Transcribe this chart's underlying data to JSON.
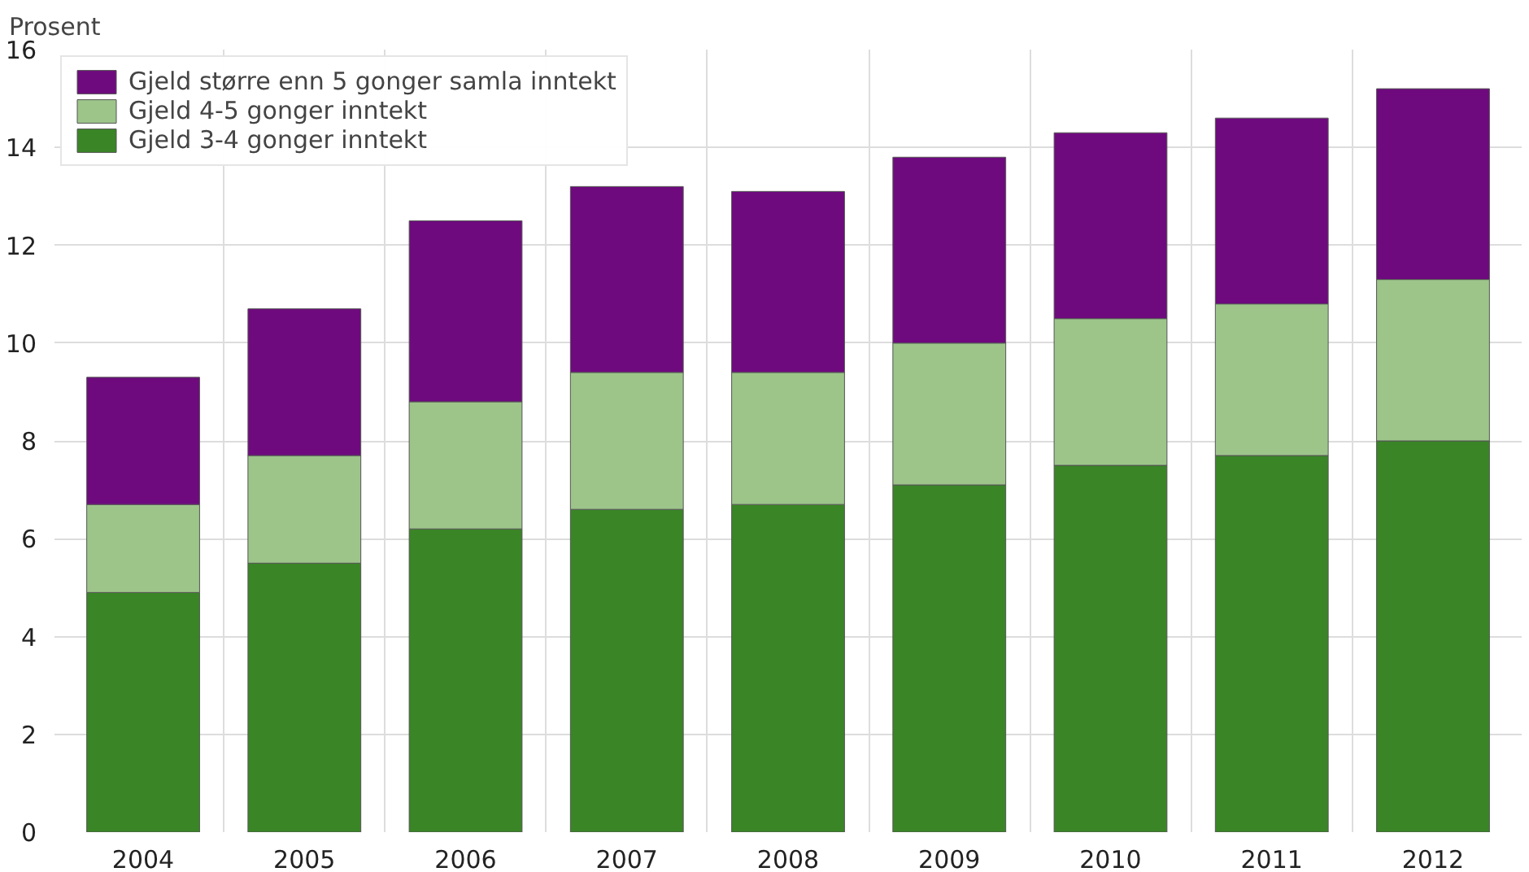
{
  "chart_data": {
    "type": "bar",
    "stacked": true,
    "ylabel": "Prosent",
    "categories": [
      "2004",
      "2005",
      "2006",
      "2007",
      "2008",
      "2009",
      "2010",
      "2011",
      "2012"
    ],
    "series": [
      {
        "name": "Gjeld 3-4 gonger inntekt",
        "color": "#3a8526",
        "values": [
          4.9,
          5.5,
          6.2,
          6.6,
          6.7,
          7.1,
          7.5,
          7.7,
          8.0
        ]
      },
      {
        "name": "Gjeld 4-5 gonger inntekt",
        "color": "#9dc58a",
        "values": [
          1.8,
          2.2,
          2.6,
          2.8,
          2.7,
          2.9,
          3.0,
          3.1,
          3.3
        ]
      },
      {
        "name": "Gjeld større enn 5 gonger samla inntekt",
        "color": "#6e0a7e",
        "values": [
          2.6,
          3.0,
          3.7,
          3.8,
          3.7,
          3.8,
          3.8,
          3.8,
          3.9
        ]
      }
    ],
    "ylim": [
      0,
      16
    ],
    "yticks": [
      0,
      2,
      4,
      6,
      8,
      10,
      12,
      14,
      16
    ],
    "grid": true,
    "legend": "top left"
  }
}
